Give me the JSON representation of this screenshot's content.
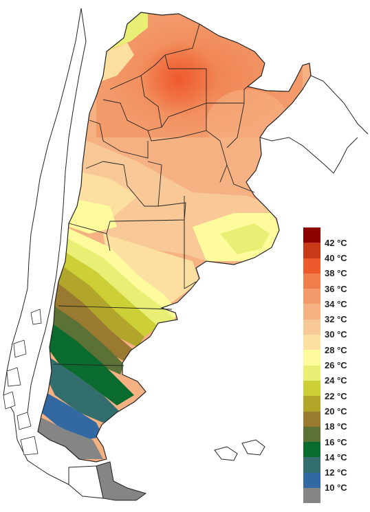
{
  "map": {
    "subject": "Argentina",
    "variable": "temperature"
  },
  "legend": {
    "colors": [
      "#8b0000",
      "#c8391a",
      "#ef5a2d",
      "#f07e4d",
      "#f39b6b",
      "#f6b182",
      "#f9c897",
      "#fde0a1",
      "#fefb9c",
      "#e8ef74",
      "#cccf35",
      "#b2a52b",
      "#9a7a30",
      "#5b7135",
      "#096b2e",
      "#326e6d",
      "#3369a3",
      "#858585"
    ],
    "labels": [
      "42 °C",
      "40 °C",
      "38 °C",
      "36 °C",
      "34 °C",
      "32 °C",
      "30 °C",
      "28 °C",
      "26 °C",
      "24 °C",
      "22 °C",
      "20 °C",
      "18 °C",
      "16 °C",
      "14 °C",
      "12 °C",
      "10 °C"
    ]
  }
}
